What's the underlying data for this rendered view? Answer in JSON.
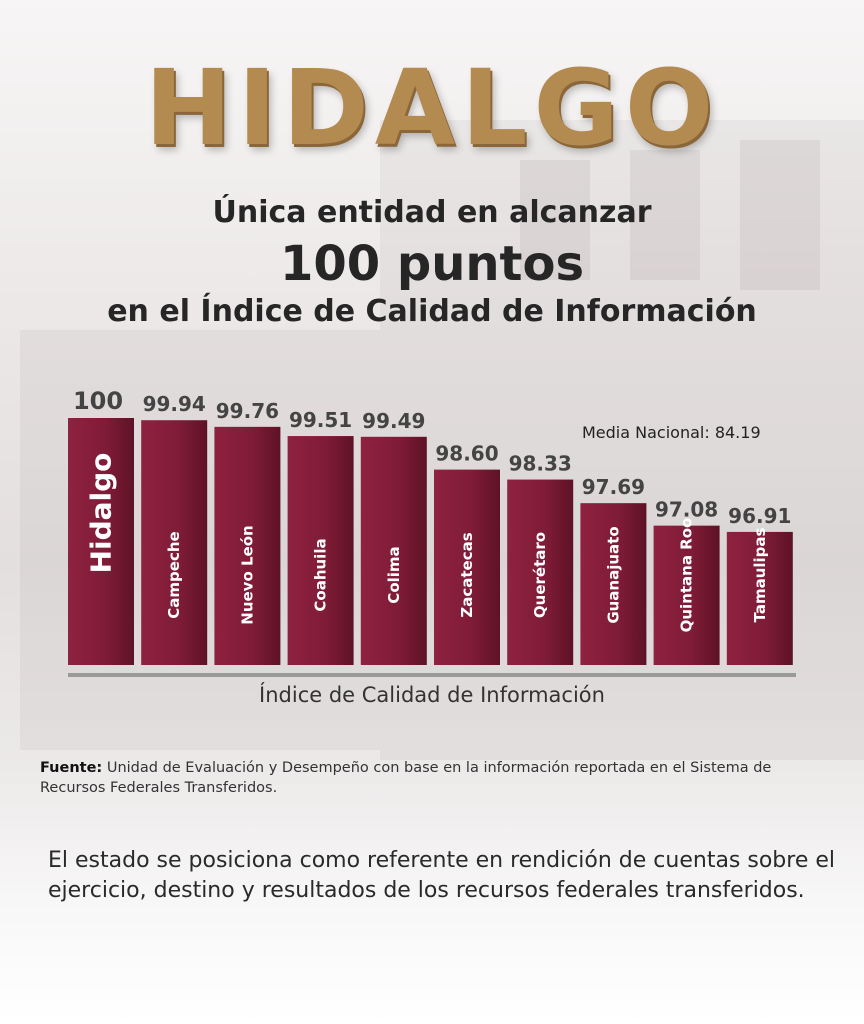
{
  "title": "HIDALGO",
  "headline": {
    "line1": "Única entidad en alcanzar",
    "line2": "100 puntos",
    "line3": "en el Índice de Calidad de Información"
  },
  "colors": {
    "title_gold": "#b38a4f",
    "bar_dark": "#7a1a33",
    "bar_mid": "#8e2240",
    "text_dark": "#262626"
  },
  "chart_data": {
    "type": "bar",
    "categories": [
      "Hidalgo",
      "Campeche",
      "Nuevo León",
      "Coahuila",
      "Colima",
      "Zacatecas",
      "Querétaro",
      "Guanajuato",
      "Quintana Roo",
      "Tamaulipas"
    ],
    "values": [
      100,
      99.94,
      99.76,
      99.51,
      99.49,
      98.6,
      98.33,
      97.69,
      97.08,
      96.91
    ],
    "value_labels": [
      "100",
      "99.94",
      "99.76",
      "99.51",
      "99.49",
      "98.60",
      "98.33",
      "97.69",
      "97.08",
      "96.91"
    ],
    "xlabel": "Índice de Calidad de Información",
    "annotation": "Media Nacional: 84.19",
    "grid": false,
    "highlight": "Hidalgo"
  },
  "source": {
    "label": "Fuente:",
    "text": "Unidad de Evaluación y Desempeño con base en la información reportada en el Sistema de Recursos Federales Transferidos."
  },
  "footer_text": "El estado se posiciona como referente en rendición de cuentas sobre el ejercicio, destino y resultados de los recursos federales transferidos."
}
